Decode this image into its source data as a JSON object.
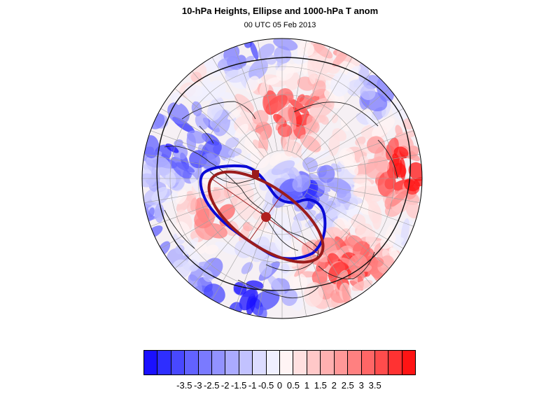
{
  "title": "10-hPa Heights, Ellipse and 1000-hPa T anom",
  "subtitle": "00 UTC 05 Feb 2013",
  "map": {
    "projection": "north-polar stereographic (hemispheric)",
    "colors": {
      "height_contour_1": "#0a0ad6",
      "height_contour_2": "#101010",
      "ellipse": "#9a1c1c",
      "ellipse_center": "#b02020"
    }
  },
  "colorbar": {
    "colors": [
      "#1a10ff",
      "#2e2eff",
      "#4848ff",
      "#6262ff",
      "#7a7aff",
      "#9292ff",
      "#aaaaff",
      "#c2c2ff",
      "#dcdcff",
      "#f0f0ff",
      "#fff4f4",
      "#ffe0e0",
      "#ffc8c8",
      "#ffb0b0",
      "#ff9898",
      "#ff8080",
      "#ff6666",
      "#ff4c4c",
      "#ff3232",
      "#ff1414"
    ],
    "labels": [
      "-3.5",
      "-3",
      "-2.5",
      "-2",
      "-1.5",
      "-1",
      "-0.5",
      "0",
      "0.5",
      "1",
      "1.5",
      "2",
      "2.5",
      "3",
      "3.5"
    ]
  }
}
